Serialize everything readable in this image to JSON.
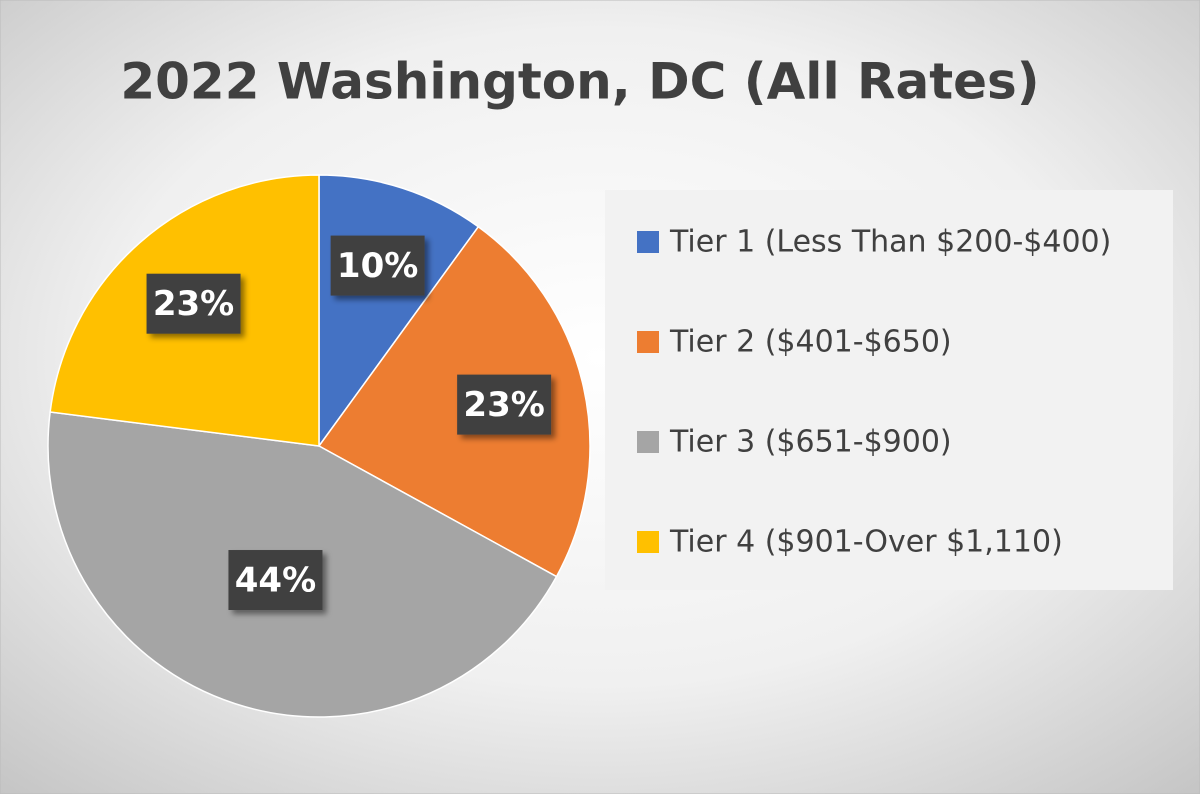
{
  "chart_data": {
    "type": "pie",
    "title": "2022 Washington, DC (All Rates)",
    "categories": [
      "Tier 1 (Less Than $200-$400)",
      "Tier 2 ($401-$650)",
      "Tier 3 ($651-$900)",
      "Tier 4 ($901-Over $1,110)"
    ],
    "values": [
      10,
      23,
      44,
      23
    ],
    "value_labels": [
      "10%",
      "23%",
      "44%",
      "23%"
    ],
    "colors": [
      "#4472c4",
      "#ed7d31",
      "#a5a5a5",
      "#ffc000"
    ],
    "legend": "right"
  }
}
